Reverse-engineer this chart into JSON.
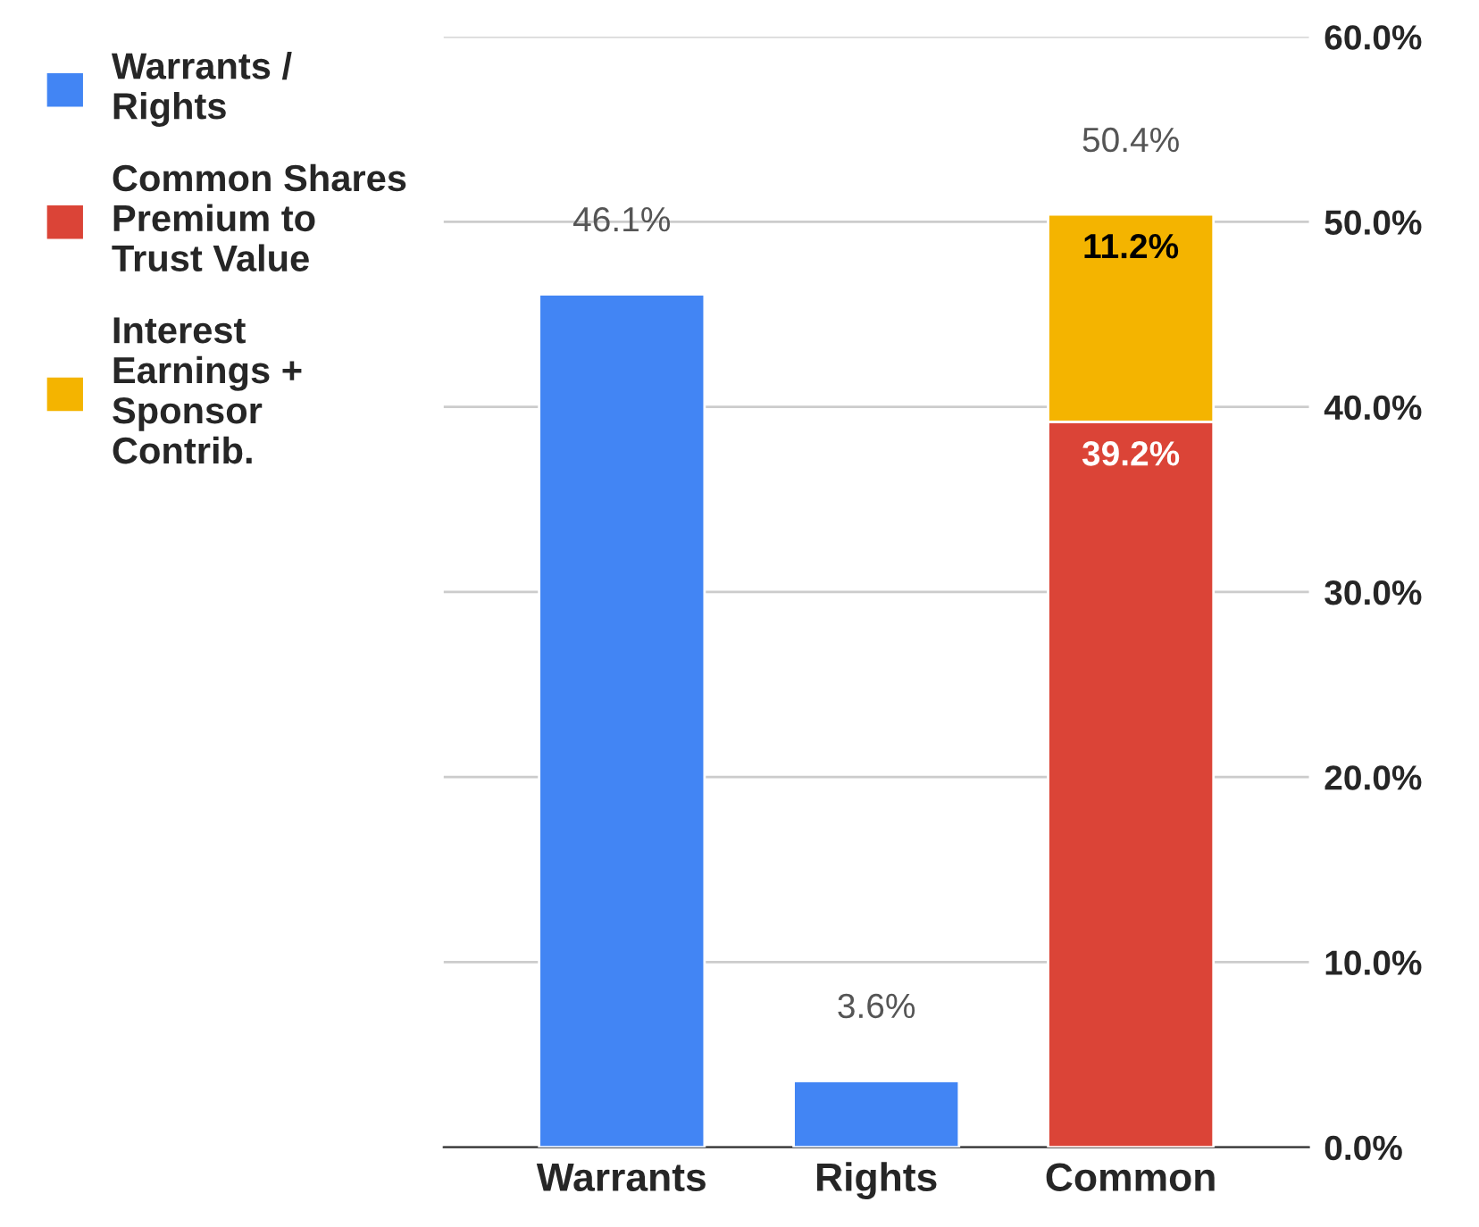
{
  "chart_data": {
    "type": "bar",
    "stacked": true,
    "categories": [
      "Warrants",
      "Rights",
      "Common"
    ],
    "series": [
      {
        "name": "Warrants / Rights",
        "color": "#4285f4",
        "values": [
          46.1,
          3.6,
          null
        ],
        "value_labels": [
          "46.1%",
          "3.6%",
          null
        ]
      },
      {
        "name": "Common Shares Premium to Trust Value",
        "color": "#db4437",
        "values": [
          null,
          null,
          39.2
        ],
        "value_labels": [
          null,
          null,
          "39.2%"
        ]
      },
      {
        "name": "Interest Earnings + Sponsor Contrib.",
        "color": "#f4b400",
        "values": [
          null,
          null,
          11.2
        ],
        "value_labels": [
          null,
          null,
          "11.2%"
        ]
      }
    ],
    "totals": [
      null,
      null,
      "50.4%"
    ],
    "ylim": [
      0,
      60
    ],
    "yticks": [
      {
        "value": 0,
        "label": "0.0%"
      },
      {
        "value": 10,
        "label": "10.0%"
      },
      {
        "value": 20,
        "label": "20.0%"
      },
      {
        "value": 30,
        "label": "30.0%"
      },
      {
        "value": 40,
        "label": "40.0%"
      },
      {
        "value": 50,
        "label": "50.0%"
      },
      {
        "value": 60,
        "label": "60.0%"
      }
    ],
    "grid": "y",
    "legend": "left"
  }
}
